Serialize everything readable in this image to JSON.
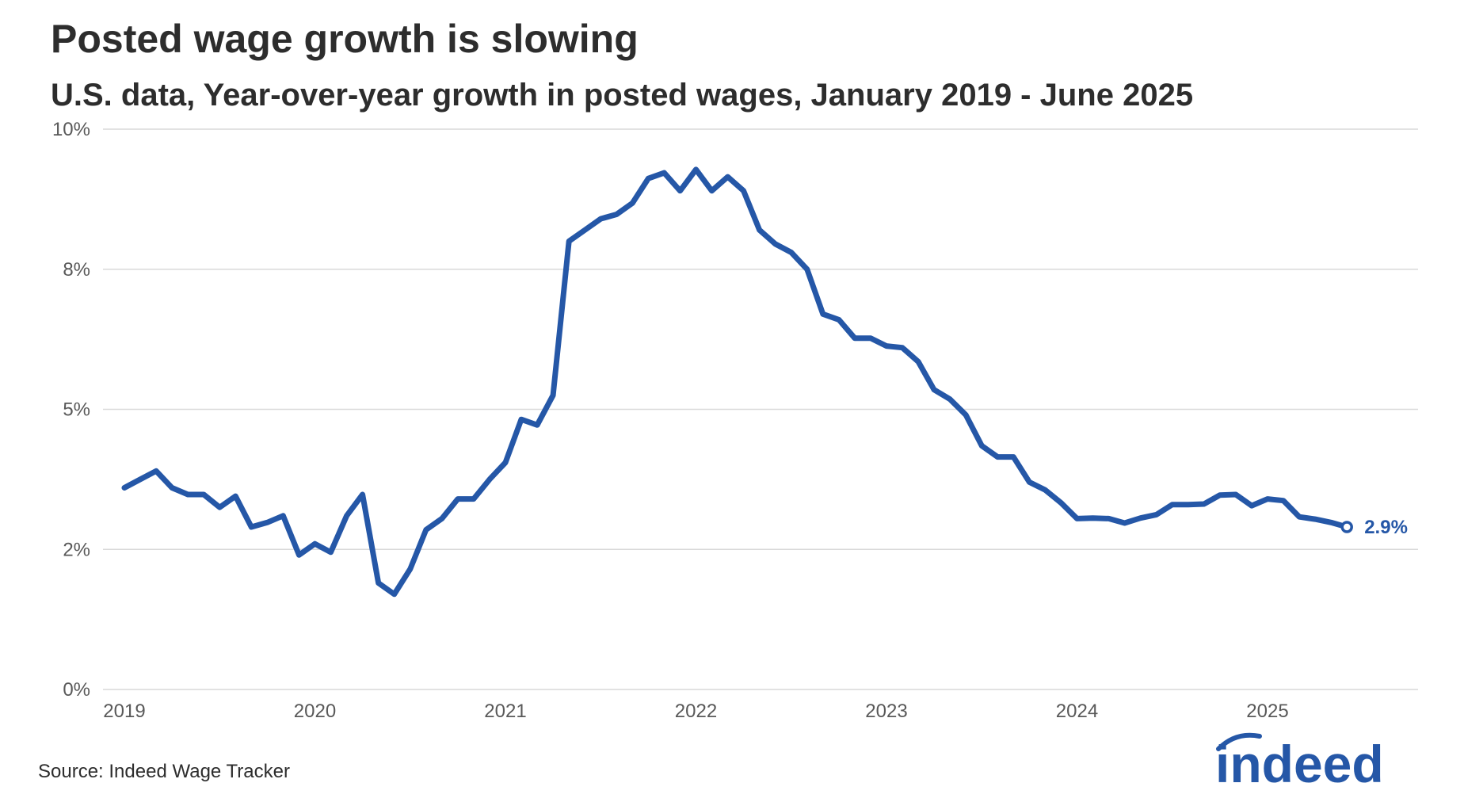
{
  "header": {
    "title": "Posted wage growth is slowing",
    "subtitle": "U.S. data, Year-over-year growth in posted wages, January 2019 - June 2025"
  },
  "footer": {
    "source": "Source: Indeed Wage Tracker",
    "logo_text": "indeed"
  },
  "colors": {
    "line": "#2557a7",
    "grid": "#d9d9d9",
    "logo": "#2557a7"
  },
  "chart_data": {
    "type": "line",
    "title": "Posted wage growth is slowing",
    "subtitle": "U.S. data, Year-over-year growth in posted wages, January 2019 - June 2025",
    "xlabel": "",
    "ylabel": "",
    "ylim": [
      0,
      10
    ],
    "grid": true,
    "y_ticks": [
      {
        "value": 0,
        "label": "0%"
      },
      {
        "value": 2.5,
        "label": "2%"
      },
      {
        "value": 5,
        "label": "5%"
      },
      {
        "value": 7.5,
        "label": "8%"
      },
      {
        "value": 10,
        "label": "10%"
      }
    ],
    "x_ticks": [
      {
        "value": 2019.0,
        "label": "2019"
      },
      {
        "value": 2020.0,
        "label": "2020"
      },
      {
        "value": 2021.0,
        "label": "2021"
      },
      {
        "value": 2022.0,
        "label": "2022"
      },
      {
        "value": 2023.0,
        "label": "2023"
      },
      {
        "value": 2024.0,
        "label": "2024"
      },
      {
        "value": 2025.0,
        "label": "2025"
      }
    ],
    "end_label": "2.9%",
    "series": [
      {
        "name": "Posted wage growth",
        "start": "2019-01",
        "values": [
          3.6,
          3.75,
          3.9,
          3.6,
          3.48,
          3.48,
          3.25,
          3.45,
          2.9,
          2.98,
          3.1,
          2.4,
          2.6,
          2.45,
          3.1,
          3.48,
          1.9,
          1.7,
          2.15,
          2.85,
          3.05,
          3.4,
          3.4,
          3.75,
          4.05,
          4.82,
          4.72,
          5.25,
          8.0,
          8.2,
          8.4,
          8.48,
          8.68,
          9.12,
          9.22,
          8.9,
          9.28,
          8.9,
          9.15,
          8.9,
          8.2,
          7.95,
          7.8,
          7.5,
          6.7,
          6.6,
          6.27,
          6.27,
          6.13,
          6.1,
          5.85,
          5.35,
          5.18,
          4.9,
          4.35,
          4.15,
          4.15,
          3.7,
          3.56,
          3.33,
          3.05,
          3.06,
          3.05,
          2.97,
          3.06,
          3.12,
          3.3,
          3.3,
          3.31,
          3.47,
          3.48,
          3.28,
          3.4,
          3.37,
          3.08,
          3.04,
          2.98,
          2.9
        ]
      }
    ]
  }
}
